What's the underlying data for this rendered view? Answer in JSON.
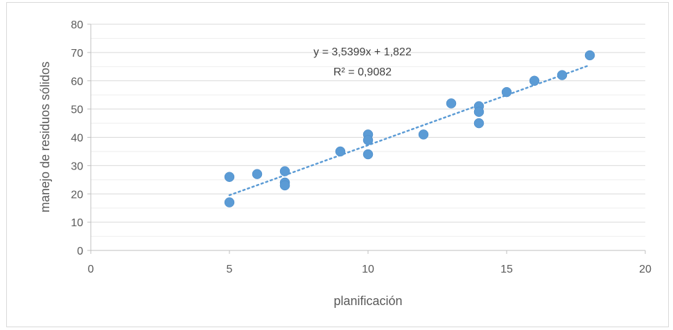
{
  "chart_data": {
    "type": "scatter",
    "title": "",
    "xlabel": "planificación",
    "ylabel": "manejo de residuos sólidos",
    "xlim": [
      0,
      20
    ],
    "ylim": [
      0,
      80
    ],
    "xticks": [
      0,
      5,
      10,
      15,
      20
    ],
    "yticks": [
      0,
      10,
      20,
      30,
      40,
      50,
      60,
      70,
      80
    ],
    "grid": "horizontal",
    "marker_color": "#5B9BD5",
    "points": [
      {
        "x": 5,
        "y": 26
      },
      {
        "x": 5,
        "y": 17
      },
      {
        "x": 6,
        "y": 27
      },
      {
        "x": 7,
        "y": 28
      },
      {
        "x": 7,
        "y": 24
      },
      {
        "x": 7,
        "y": 23
      },
      {
        "x": 9,
        "y": 35
      },
      {
        "x": 10,
        "y": 41
      },
      {
        "x": 10,
        "y": 39
      },
      {
        "x": 10,
        "y": 34
      },
      {
        "x": 12,
        "y": 41
      },
      {
        "x": 13,
        "y": 52
      },
      {
        "x": 14,
        "y": 51
      },
      {
        "x": 14,
        "y": 49
      },
      {
        "x": 14,
        "y": 45
      },
      {
        "x": 15,
        "y": 56
      },
      {
        "x": 16,
        "y": 60
      },
      {
        "x": 17,
        "y": 62
      },
      {
        "x": 18,
        "y": 69
      }
    ],
    "trendline": {
      "type": "linear",
      "slope": 3.5399,
      "intercept": 1.822,
      "x_range": [
        5,
        18
      ],
      "equation": "y = 3,5399x + 1,822",
      "r_squared": "R² = 0,9082"
    }
  }
}
